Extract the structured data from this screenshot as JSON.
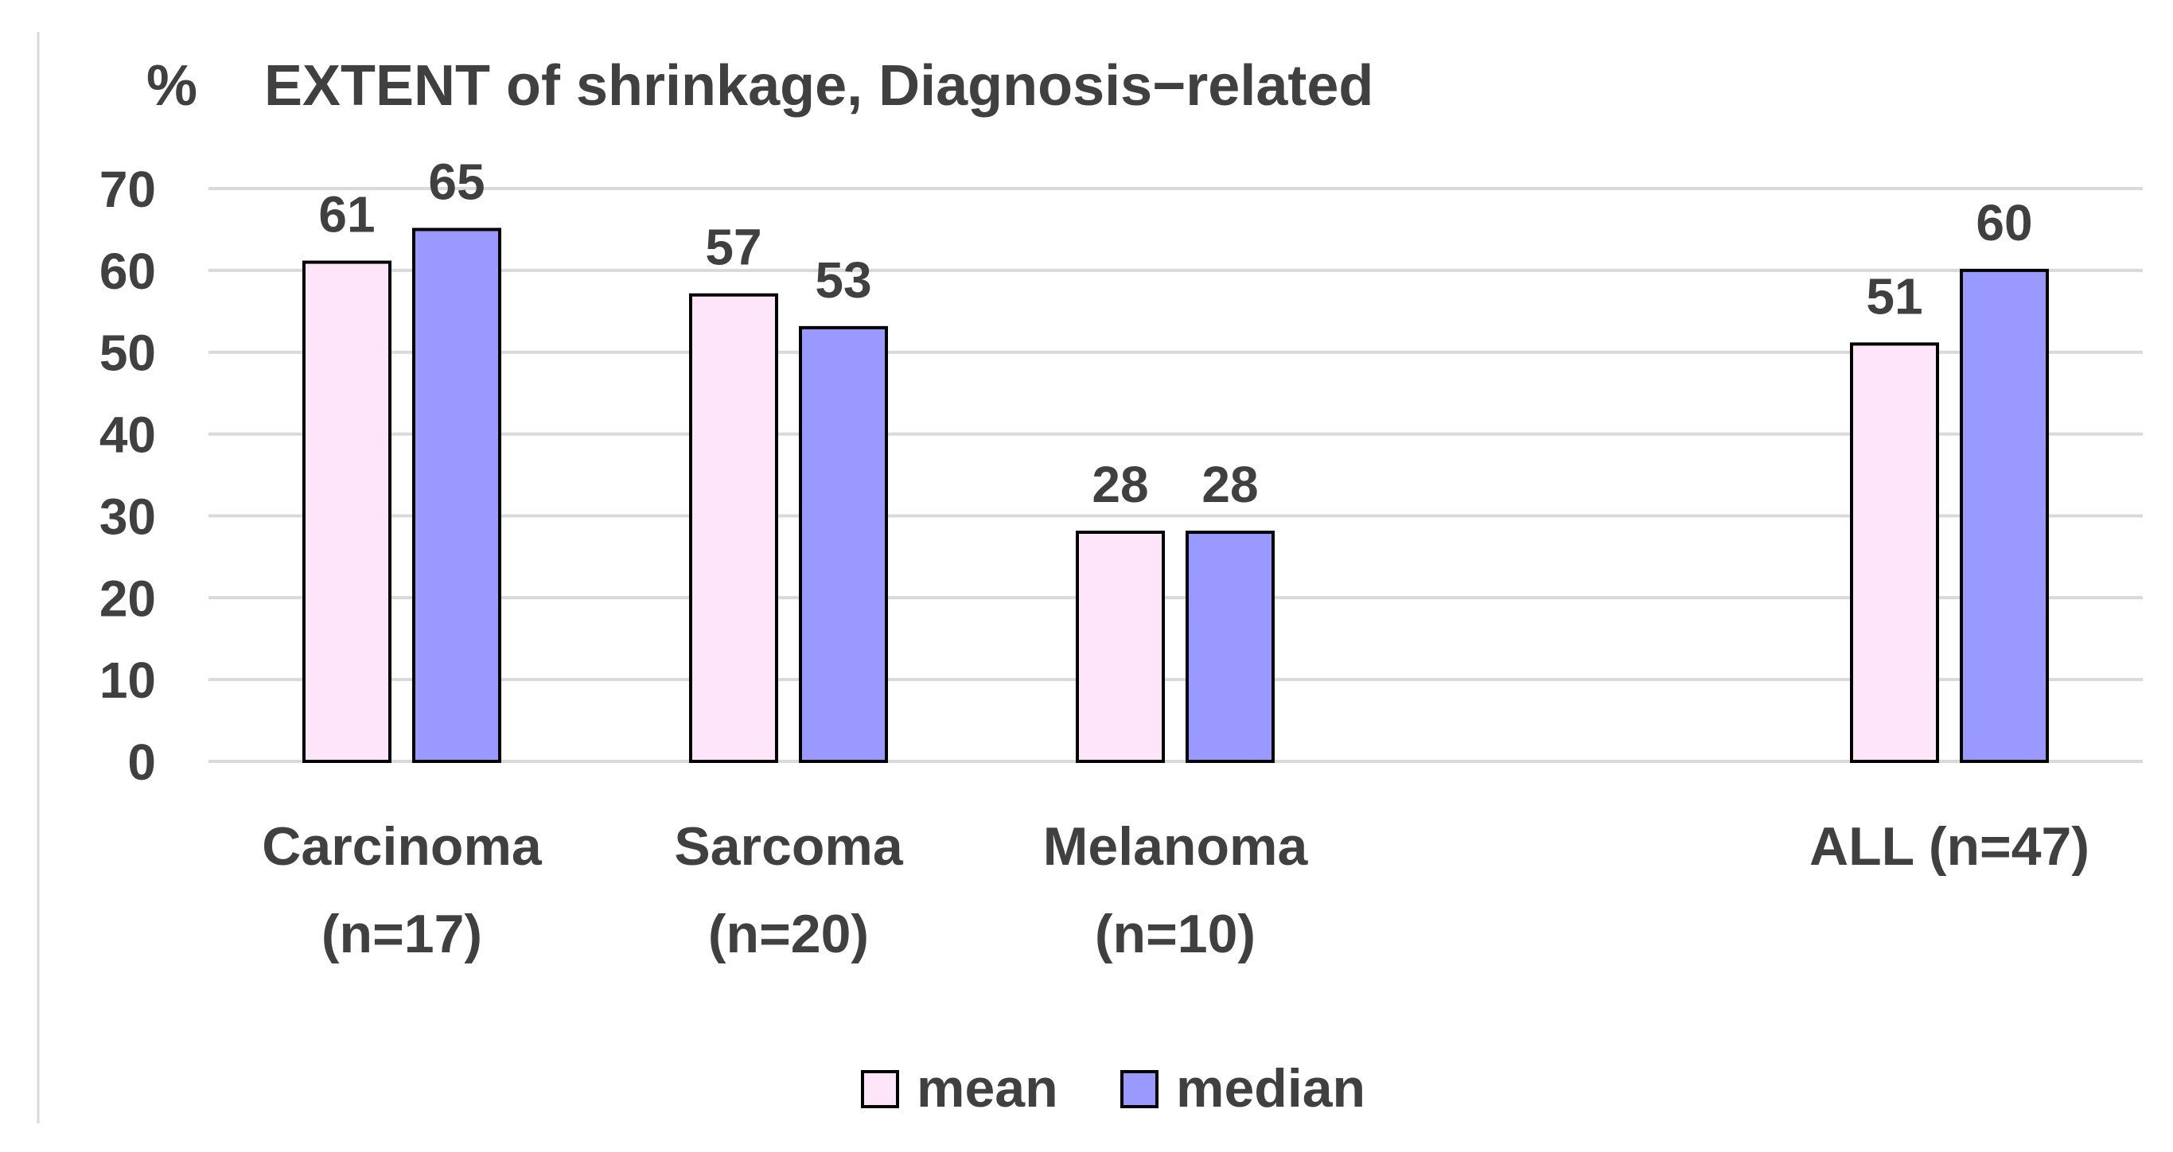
{
  "chart_data": {
    "type": "bar",
    "title_unit": "%",
    "title": "EXTENT of shrinkage, Diagnosis−related",
    "categories": [
      [
        "Carcinoma",
        "(n=17)"
      ],
      [
        "Sarcoma",
        "(n=20)"
      ],
      [
        "Melanoma",
        "(n=10)"
      ],
      [
        "ALL  (n=47)"
      ]
    ],
    "series": [
      {
        "name": "mean",
        "values": [
          61,
          57,
          28,
          51
        ],
        "color": "#ffe5fa"
      },
      {
        "name": "median",
        "values": [
          65,
          53,
          28,
          60
        ],
        "color": "#9999ff"
      }
    ],
    "ylim": [
      0,
      70
    ],
    "yticks": [
      0,
      10,
      20,
      30,
      40,
      50,
      60,
      70
    ],
    "grid": true,
    "legend_position": "bottom-center",
    "bar_outline_color": "#000000",
    "text_color": "#404040",
    "grid_color": "#d9d9d9"
  }
}
